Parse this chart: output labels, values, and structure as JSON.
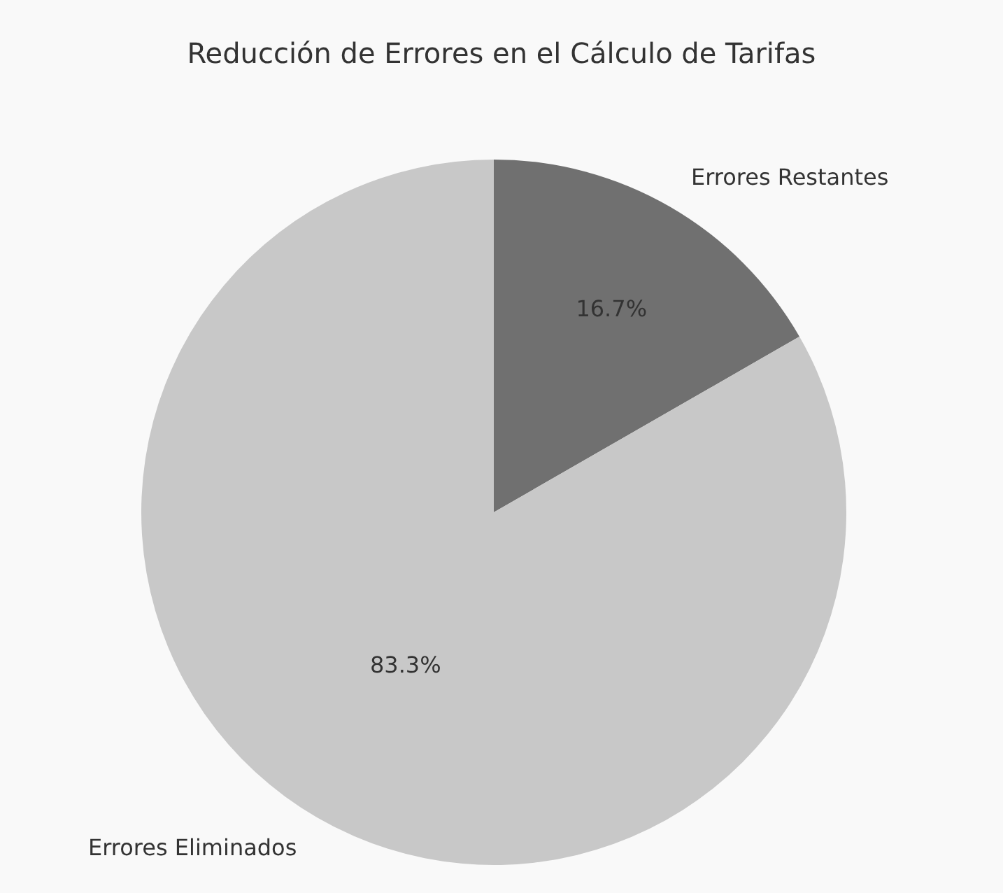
{
  "chart_data": {
    "type": "pie",
    "title": "Reducción de Errores en el Cálculo de Tarifas",
    "categories": [
      "Errores Restantes",
      "Errores Eliminados"
    ],
    "values": [
      16.7,
      83.3
    ],
    "value_labels": [
      "16.7%",
      "83.3%"
    ],
    "colors": [
      "#707070",
      "#c8c8c8"
    ],
    "legend": false
  }
}
